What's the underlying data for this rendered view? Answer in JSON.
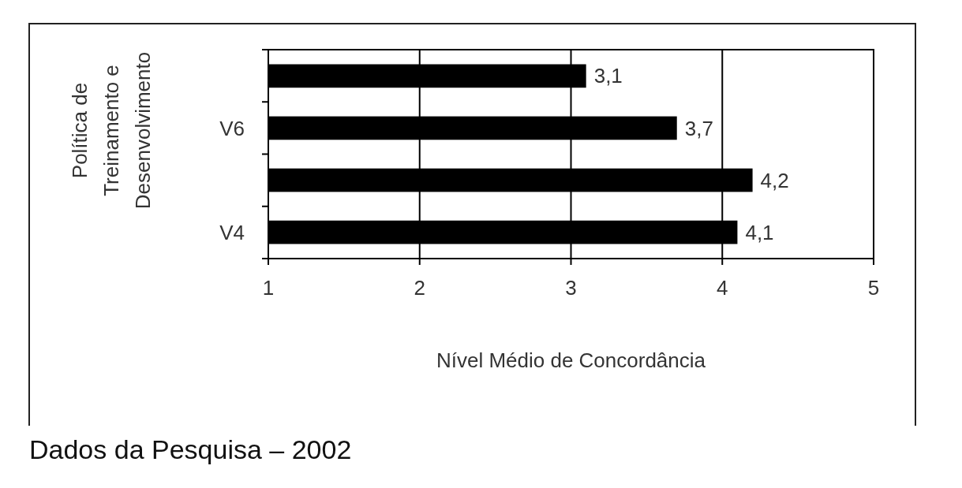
{
  "chart_data": {
    "type": "bar",
    "orientation": "horizontal",
    "categories": [
      null,
      "V6",
      null,
      "V4"
    ],
    "values": [
      3.1,
      3.7,
      4.2,
      4.1
    ],
    "value_labels": [
      "3,1",
      "3,7",
      "4,2",
      "4,1"
    ],
    "color": "#000000",
    "xlim": [
      1,
      5
    ],
    "xticks": [
      1,
      2,
      3,
      4,
      5
    ],
    "grid": "x",
    "xlabel": "Nível Médio de Concordância",
    "ylabel": "Política de Treinamento e Desenvolvimento",
    "annotations": [
      "Dados da Pesquisa – 2002"
    ]
  }
}
